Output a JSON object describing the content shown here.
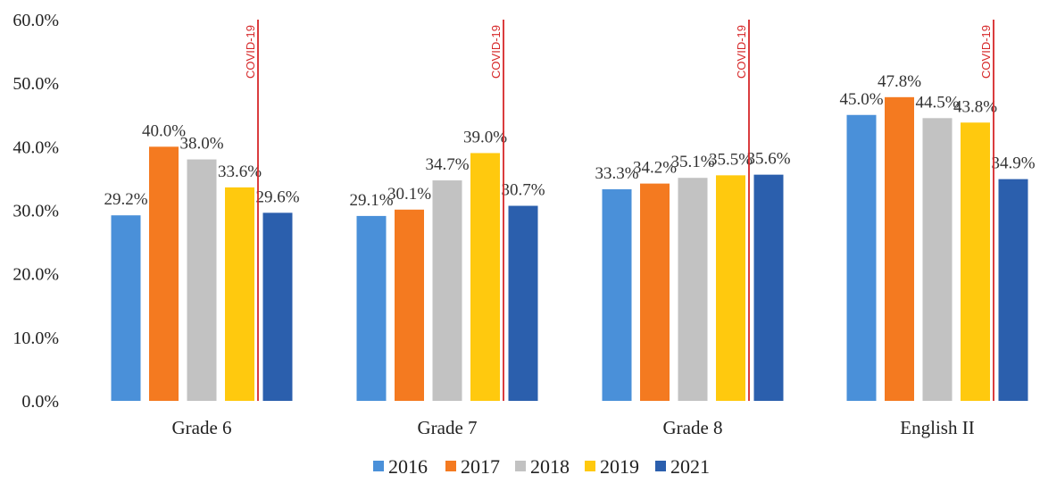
{
  "chart_data": {
    "type": "bar",
    "categories": [
      "Grade 6",
      "Grade 7",
      "Grade 8",
      "English II"
    ],
    "series": [
      {
        "name": "2016",
        "color": "#4a90d9",
        "values": [
          29.2,
          29.1,
          33.3,
          45.0
        ]
      },
      {
        "name": "2017",
        "color": "#f47a20",
        "values": [
          40.0,
          30.1,
          34.2,
          47.8
        ]
      },
      {
        "name": "2018",
        "color": "#c2c2c2",
        "values": [
          38.0,
          34.7,
          35.1,
          44.5
        ]
      },
      {
        "name": "2019",
        "color": "#ffc90e",
        "values": [
          33.6,
          39.0,
          35.5,
          43.8
        ]
      },
      {
        "name": "2021",
        "color": "#2b5fad",
        "values": [
          29.6,
          30.7,
          35.6,
          34.9
        ]
      }
    ],
    "data_labels": [
      [
        "29.2%",
        "29.1%",
        "33.3%",
        "45.0%"
      ],
      [
        "40.0%",
        "30.1%",
        "34.2%",
        "47.8%"
      ],
      [
        "38.0%",
        "34.7%",
        "35.1%",
        "44.5%"
      ],
      [
        "33.6%",
        "39.0%",
        "35.5%",
        "43.8%"
      ],
      [
        "29.6%",
        "30.7%",
        "35.6%",
        "34.9%"
      ]
    ],
    "y_ticks": [
      "0.0%",
      "10.0%",
      "20.0%",
      "30.0%",
      "40.0%",
      "50.0%",
      "60.0%"
    ],
    "ylim": [
      0,
      60
    ],
    "grid": false,
    "legend_position": "bottom",
    "annotation": {
      "text": "COVID-19",
      "color": "#d62728"
    }
  }
}
